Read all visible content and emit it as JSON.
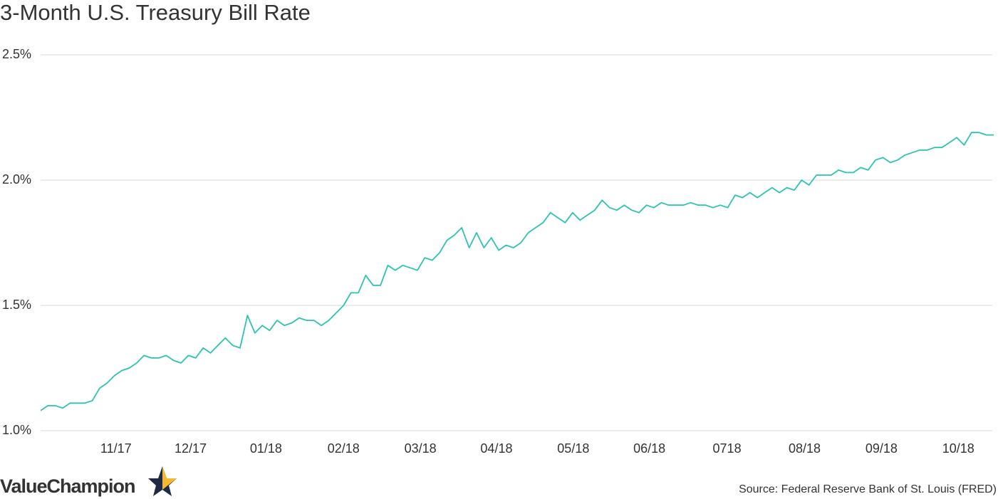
{
  "chart_data": {
    "type": "line",
    "title": "3-Month U.S. Treasury Bill Rate",
    "source": "Source: Federal Reserve Bank of St. Louis (FRED)",
    "brand": "ValueChampion",
    "color": "#2cc4b0",
    "grid": true,
    "values": [
      1.08,
      1.1,
      1.1,
      1.09,
      1.11,
      1.11,
      1.11,
      1.12,
      1.17,
      1.19,
      1.22,
      1.24,
      1.25,
      1.27,
      1.3,
      1.29,
      1.29,
      1.3,
      1.28,
      1.27,
      1.3,
      1.29,
      1.33,
      1.31,
      1.34,
      1.37,
      1.34,
      1.33,
      1.46,
      1.39,
      1.42,
      1.4,
      1.44,
      1.42,
      1.43,
      1.45,
      1.44,
      1.44,
      1.42,
      1.44,
      1.47,
      1.5,
      1.55,
      1.55,
      1.62,
      1.58,
      1.58,
      1.66,
      1.64,
      1.66,
      1.65,
      1.64,
      1.69,
      1.68,
      1.71,
      1.76,
      1.78,
      1.81,
      1.73,
      1.79,
      1.73,
      1.77,
      1.72,
      1.74,
      1.73,
      1.75,
      1.79,
      1.81,
      1.83,
      1.87,
      1.85,
      1.83,
      1.87,
      1.84,
      1.86,
      1.88,
      1.92,
      1.89,
      1.88,
      1.9,
      1.88,
      1.87,
      1.9,
      1.89,
      1.91,
      1.9,
      1.9,
      1.9,
      1.91,
      1.9,
      1.9,
      1.89,
      1.9,
      1.89,
      1.94,
      1.93,
      1.95,
      1.93,
      1.95,
      1.97,
      1.95,
      1.97,
      1.96,
      2.0,
      1.98,
      2.02,
      2.02,
      2.02,
      2.04,
      2.03,
      2.03,
      2.05,
      2.04,
      2.08,
      2.09,
      2.07,
      2.08,
      2.1,
      2.11,
      2.12,
      2.12,
      2.13,
      2.13,
      2.15,
      2.17,
      2.14,
      2.19,
      2.19,
      2.18,
      2.18
    ],
    "xlim": [
      0,
      129
    ],
    "xticks": [
      {
        "value": 10.2,
        "label": "11/17"
      },
      {
        "value": 20.3,
        "label": "12/17"
      },
      {
        "value": 30.5,
        "label": "01/18"
      },
      {
        "value": 41.0,
        "label": "02/18"
      },
      {
        "value": 51.4,
        "label": "03/18"
      },
      {
        "value": 61.7,
        "label": "04/18"
      },
      {
        "value": 72.1,
        "label": "05/18"
      },
      {
        "value": 82.4,
        "label": "06/18"
      },
      {
        "value": 92.9,
        "label": "0718"
      },
      {
        "value": 103.4,
        "label": "08/18"
      },
      {
        "value": 113.8,
        "label": "09/18"
      },
      {
        "value": 124.2,
        "label": "10/18"
      }
    ],
    "ylim": [
      1.0,
      2.5
    ],
    "yticks": [
      {
        "value": 1.0,
        "label": "1.0%"
      },
      {
        "value": 1.5,
        "label": "1.5%"
      },
      {
        "value": 2.0,
        "label": "2.0%"
      },
      {
        "value": 2.5,
        "label": "2.5%"
      }
    ]
  }
}
